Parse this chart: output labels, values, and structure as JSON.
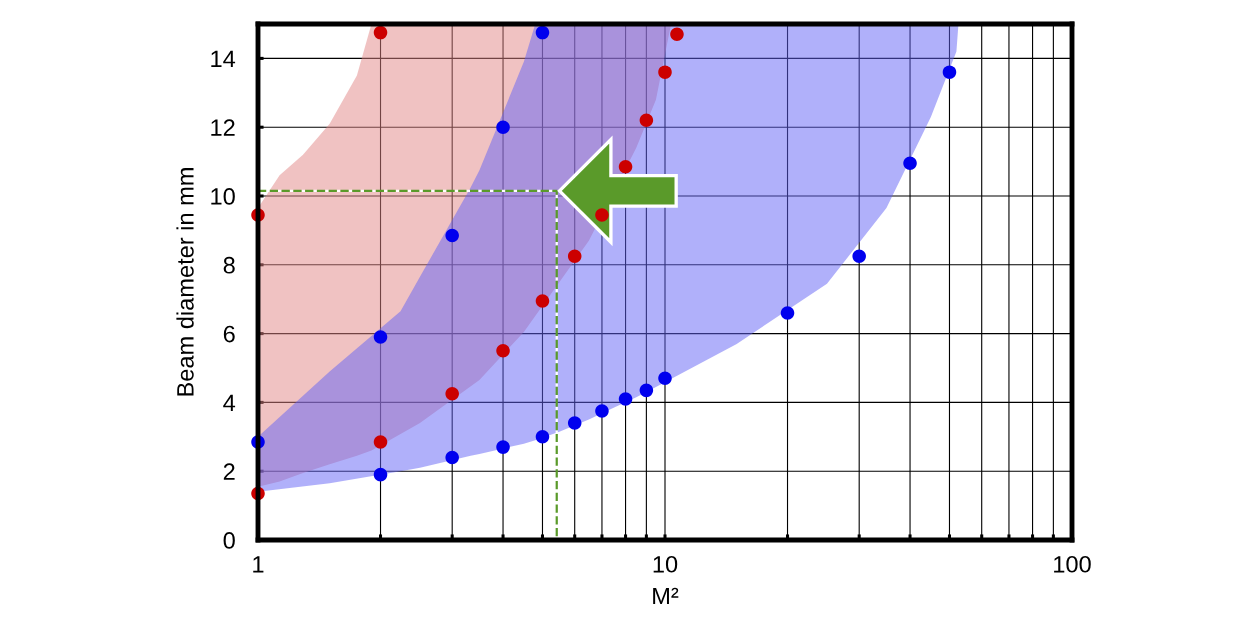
{
  "chart_data": {
    "type": "scatter",
    "xlabel": "M²",
    "ylabel": "Beam diameter in mm",
    "log": "x",
    "grid": true,
    "xlim": [
      1,
      100
    ],
    "ylim": [
      0,
      15
    ],
    "xticks": [
      1,
      {
        "value": 2,
        "label": null
      },
      {
        "value": 3,
        "label": null
      },
      {
        "value": 4,
        "label": null
      },
      {
        "value": 5,
        "label": null
      },
      {
        "value": 6,
        "label": null
      },
      {
        "value": 7,
        "label": null
      },
      {
        "value": 8,
        "label": null
      },
      {
        "value": 9,
        "label": null
      },
      10,
      {
        "value": 20,
        "label": null
      },
      {
        "value": 30,
        "label": null
      },
      {
        "value": 40,
        "label": null
      },
      {
        "value": 50,
        "label": null
      },
      {
        "value": 60,
        "label": null
      },
      {
        "value": 70,
        "label": null
      },
      {
        "value": 80,
        "label": null
      },
      {
        "value": 90,
        "label": null
      },
      100
    ],
    "yticks": [
      0,
      2,
      4,
      6,
      8,
      10,
      12,
      14
    ],
    "series": [
      {
        "type": "area",
        "color": "#f0c2c2",
        "x": [
          1,
          1.13,
          1.29,
          1.5,
          1.75,
          1.9,
          2.5,
          3.5,
          4.5,
          6.5,
          8.5,
          9.5,
          10.35
        ],
        "values": [
          null,
          null,
          null,
          null,
          null,
          null,
          null,
          null,
          null,
          null,
          null,
          null,
          null
        ],
        "upper": [
          9.65,
          10.6,
          11.2,
          12.1,
          13.5,
          15,
          15,
          15,
          15,
          15,
          15,
          15,
          15
        ],
        "lower": [
          1.55,
          1.7,
          1.95,
          2.2,
          2.45,
          2.6,
          3.4,
          4.65,
          6.05,
          8.7,
          11.4,
          12.8,
          15
        ]
      },
      {
        "type": "area",
        "color": "#b0b0fa",
        "x": [
          1,
          1.5,
          2.24,
          2.5,
          3.33,
          3.5,
          4.5,
          4.8,
          5.5,
          6.5,
          7.5,
          8.5,
          9.5,
          15,
          25,
          35,
          45,
          52,
          52.6
        ],
        "values": [
          null,
          null,
          null,
          null,
          null,
          null,
          null,
          null,
          null,
          null,
          null,
          null,
          null,
          null,
          null,
          null,
          null,
          null,
          null
        ],
        "upper": [
          3.0,
          4.9,
          6.65,
          7.65,
          10.25,
          10.75,
          13.9,
          15,
          15,
          15,
          15,
          15,
          15,
          15,
          15,
          15,
          15,
          15,
          15
        ],
        "lower": [
          1.4,
          1.65,
          2.0,
          2.1,
          2.45,
          2.5,
          2.8,
          2.9,
          3.15,
          3.5,
          3.85,
          4.15,
          4.45,
          5.7,
          7.45,
          9.65,
          12.3,
          14.2,
          15
        ]
      },
      {
        "type": "line",
        "color": "#5a9a2a",
        "line_style": "dashed",
        "marker": "none",
        "x": [
          1,
          5.42,
          5.42
        ],
        "values": [
          10.15,
          10.15,
          0
        ]
      },
      {
        "type": "scatter",
        "color": "#cc0000",
        "marker": "circle",
        "x": [
          1,
          2,
          1,
          2,
          3,
          4,
          5,
          6,
          7,
          8,
          9,
          10,
          10.7
        ],
        "values": [
          9.45,
          14.75,
          1.35,
          2.85,
          4.25,
          5.5,
          6.95,
          8.25,
          9.45,
          10.85,
          12.2,
          13.6,
          14.7
        ]
      },
      {
        "color": "#0000ee",
        "marker": "circle",
        "x": [
          1,
          2,
          3,
          4,
          5,
          2,
          3,
          4,
          5,
          6,
          7,
          8,
          9,
          10,
          20,
          30,
          40,
          50
        ],
        "values": [
          2.85,
          5.9,
          8.85,
          12.0,
          14.75,
          1.9,
          2.4,
          2.7,
          3.0,
          3.4,
          3.75,
          4.1,
          4.35,
          4.7,
          6.6,
          8.25,
          10.95,
          13.6
        ]
      }
    ]
  }
}
